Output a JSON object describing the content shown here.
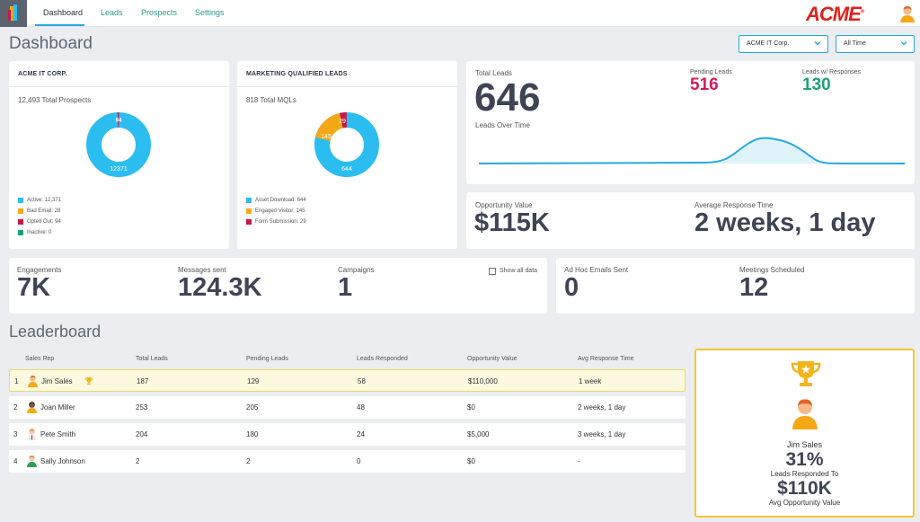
{
  "nav": {
    "tabs": [
      {
        "label": "Dashboard",
        "active": true
      },
      {
        "label": "Leads"
      },
      {
        "label": "Prospects"
      },
      {
        "label": "Settings"
      }
    ],
    "brand": "ACME",
    "brand_reg": "®"
  },
  "page": {
    "title": "Dashboard",
    "filters": {
      "company": "ACME IT Corp.",
      "range": "All Time"
    }
  },
  "prospects_card": {
    "title": "ACME IT CORP.",
    "total": "12,493 Total Prospects",
    "legend": [
      {
        "label": "Active: 12,371",
        "color": "#2bbdf0"
      },
      {
        "label": "Bad Email: 28",
        "color": "#f5a816"
      },
      {
        "label": "Opted Out: 94",
        "color": "#c8174b"
      },
      {
        "label": "Inactive: 0",
        "color": "#13a37f"
      }
    ],
    "donut_labels": {
      "main": "12371",
      "small": "94"
    }
  },
  "mql_card": {
    "title": "MARKETING QUALIFIED LEADS",
    "total": "818 Total MQLs",
    "legend": [
      {
        "label": "Asset Download: 644",
        "color": "#2bbdf0"
      },
      {
        "label": "Engaged Visitor: 145",
        "color": "#f5a816"
      },
      {
        "label": "Form Submission: 29",
        "color": "#c8174b"
      }
    ],
    "donut_labels": {
      "a": "644",
      "b": "145",
      "c": "29"
    }
  },
  "leads": {
    "total_label": "Total Leads",
    "total": "646",
    "pending_label": "Pending Leads",
    "pending": "516",
    "pending_color": "#d81a5c",
    "responses_label": "Leads w/ Responses",
    "responses": "130",
    "responses_color": "#1aa37a",
    "over_time_label": "Leads Over Time"
  },
  "opportunity": {
    "value_label": "Opportunity Value",
    "value": "$115K",
    "response_label": "Average Response Time",
    "response": "2 weeks, 1 day"
  },
  "stats": {
    "engagements_label": "Engagements",
    "engagements": "7K",
    "messages_label": "Messages sent",
    "messages": "124.3K",
    "campaigns_label": "Campaigns",
    "campaigns": "1",
    "show_all_label": "Show all data",
    "adhoc_label": "Ad Hoc Emails Sent",
    "adhoc": "0",
    "meetings_label": "Meetings Scheduled",
    "meetings": "12"
  },
  "leaderboard": {
    "title": "Leaderboard",
    "columns": [
      "Sales Rep",
      "Total Leads",
      "Pending Leads",
      "Leads Responded",
      "Opportunity Value",
      "Avg Response Time"
    ],
    "rows": [
      {
        "rank": "1",
        "name": "Jim Sales",
        "total": "187",
        "pending": "129",
        "responded": "58",
        "value": "$110,000",
        "avg": "1 week"
      },
      {
        "rank": "2",
        "name": "Joan Miller",
        "total": "253",
        "pending": "205",
        "responded": "48",
        "value": "$0",
        "avg": "2 weeks, 1 day"
      },
      {
        "rank": "3",
        "name": "Pete Smith",
        "total": "204",
        "pending": "180",
        "responded": "24",
        "value": "$5,000",
        "avg": "3 weeks, 1 day"
      },
      {
        "rank": "4",
        "name": "Sally Johnson",
        "total": "2",
        "pending": "2",
        "responded": "0",
        "value": "$0",
        "avg": "-"
      }
    ]
  },
  "winner": {
    "name": "Jim Sales",
    "pct": "31%",
    "pct_label": "Leads Responded To",
    "value": "$110K",
    "value_label": "Avg Opportunity Value"
  }
}
